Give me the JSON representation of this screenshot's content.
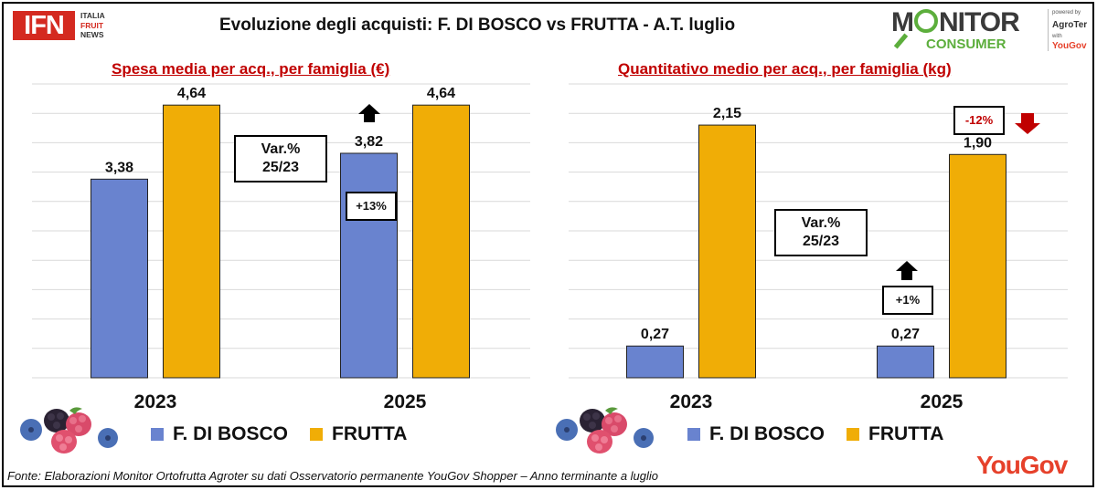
{
  "header": {
    "title": "Evoluzione degli acquisti: F. DI BOSCO vs FRUTTA  - A.T. luglio",
    "ifn_logo": {
      "mark": "IFN",
      "lines": [
        "ITALIA",
        "FRUIT",
        "NEWS"
      ]
    },
    "monitor_logo": {
      "word": "MONITOR",
      "sub": "CONSUMER",
      "powered": "powered by",
      "partner": "AgroTer",
      "with": "with",
      "partner2": "YouGov"
    }
  },
  "colors": {
    "series_bosco": "#6983cf",
    "series_frutta": "#f0ad06",
    "accent_red": "#c00000",
    "brand_yougov": "#e6412b"
  },
  "legend": {
    "bosco": "F. DI BOSCO",
    "frutta": "FRUTTA"
  },
  "chart_data": [
    {
      "type": "bar",
      "title": "Spesa media per acq., per famiglia (€)",
      "categories": [
        "2023",
        "2025"
      ],
      "series": [
        {
          "name": "F. DI BOSCO",
          "values": [
            3.38,
            3.82
          ],
          "labels": [
            "3,38",
            "3,82"
          ]
        },
        {
          "name": "FRUTTA",
          "values": [
            4.64,
            4.64
          ],
          "labels": [
            "4,64",
            "4,64"
          ]
        }
      ],
      "ylim": [
        0,
        5
      ],
      "grid": true,
      "annotation": {
        "var_label": "Var.%",
        "var_period": "25/23",
        "changes": [
          {
            "series": "F. DI BOSCO",
            "text": "+13%",
            "direction": "up"
          }
        ]
      }
    },
    {
      "type": "bar",
      "title": "Quantitativo medio per acq., per famiglia (kg)",
      "categories": [
        "2023",
        "2025"
      ],
      "series": [
        {
          "name": "F. DI BOSCO",
          "values": [
            0.27,
            0.27
          ],
          "labels": [
            "0,27",
            "0,27"
          ]
        },
        {
          "name": "FRUTTA",
          "values": [
            2.15,
            1.9
          ],
          "labels": [
            "2,15",
            "1,90"
          ]
        }
      ],
      "ylim": [
        0,
        2.5
      ],
      "grid": true,
      "annotation": {
        "var_label": "Var.%",
        "var_period": "25/23",
        "changes": [
          {
            "series": "F. DI BOSCO",
            "text": "+1%",
            "direction": "up"
          },
          {
            "series": "FRUTTA",
            "text": "-12%",
            "direction": "down"
          }
        ]
      }
    }
  ],
  "footer": {
    "source": "Fonte: Elaborazioni Monitor Ortofrutta Agroter su dati Osservatorio permanente YouGov Shopper  – Anno terminante a luglio",
    "brand": "YouGov"
  }
}
